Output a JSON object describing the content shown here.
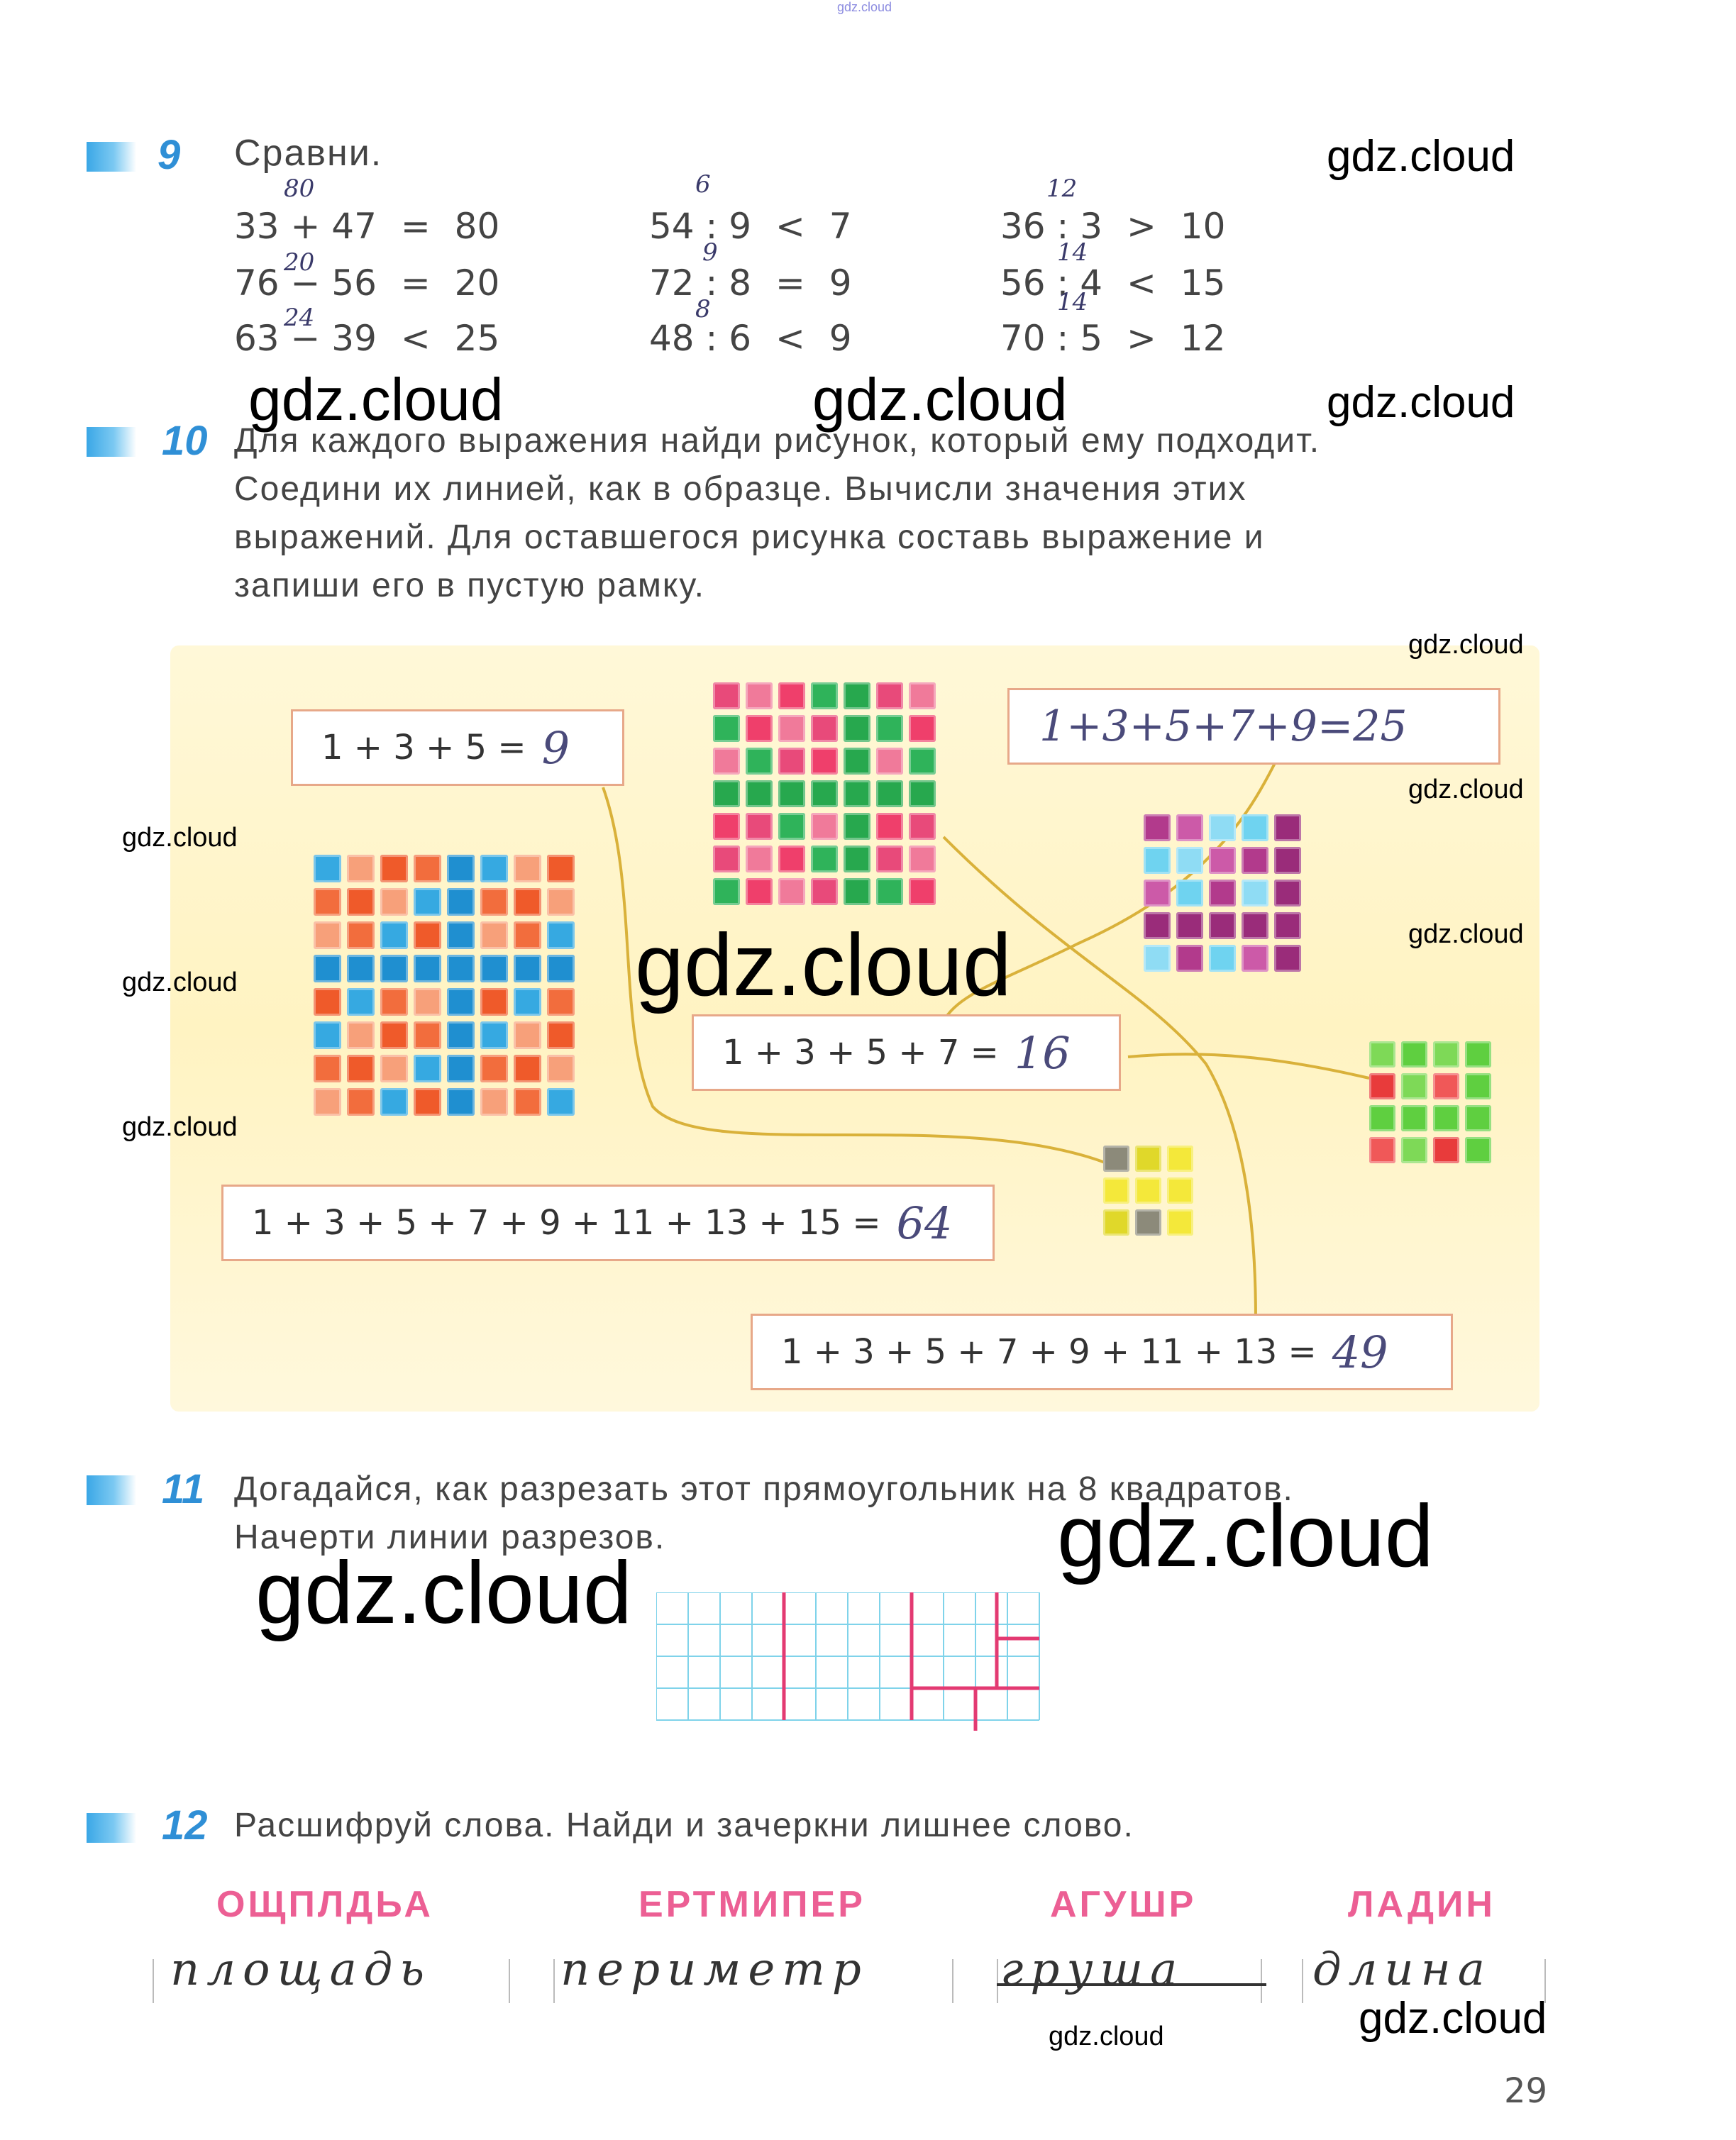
{
  "watermark_top": "gdz.cloud",
  "watermarks": [
    "gdz.cloud"
  ],
  "task9": {
    "number": "9",
    "title": "Сравни.",
    "rows": [
      {
        "expr": "33 + 47",
        "op": "=",
        "rhs": "80",
        "note": "80"
      },
      {
        "expr": "76 − 56",
        "op": "=",
        "rhs": "20",
        "note": "20"
      },
      {
        "expr": "63 − 39",
        "op": "<",
        "rhs": "25",
        "note": "24"
      },
      {
        "expr": "54 : 9",
        "op": "<",
        "rhs": "7",
        "note": "6"
      },
      {
        "expr": "72 : 8",
        "op": "=",
        "rhs": "9",
        "note": "9"
      },
      {
        "expr": "48 : 6",
        "op": "<",
        "rhs": "9",
        "note": "8"
      },
      {
        "expr": "36 : 3",
        "op": ">",
        "rhs": "10",
        "note": "12"
      },
      {
        "expr": "56 : 4",
        "op": "<",
        "rhs": "15",
        "note": "14"
      },
      {
        "expr": "70 : 5",
        "op": ">",
        "rhs": "12",
        "note": "14"
      }
    ]
  },
  "task10": {
    "number": "10",
    "lines": [
      "Для каждого выражения найди рисунок, который ему подходит.",
      "Соедини их линией, как в образце. Вычисли значения этих",
      "выражений. Для оставшегося рисунка составь выражение и",
      "запиши его в пустую рамку."
    ],
    "boxes": [
      {
        "expr": "1 + 3 + 5 =",
        "answer": "9"
      },
      {
        "expr": "",
        "answer": "1+3+5+7+9=25"
      },
      {
        "expr": "1 + 3 + 5 + 7 =",
        "answer": "16"
      },
      {
        "expr": "1 + 3 + 5 + 7 + 9 + 11 + 13 + 15 =",
        "answer": "64"
      },
      {
        "expr": "1 + 3 + 5 + 7 + 9 + 11 + 13 =",
        "answer": "49"
      }
    ]
  },
  "task11": {
    "number": "11",
    "lines": [
      "Догадайся, как разрезать этот прямоугольник на 8 квадратов.",
      "Начерти линии разрезов."
    ]
  },
  "task12": {
    "number": "12",
    "title": "Расшифруй слова. Найди и зачеркни лишнее слово.",
    "words": [
      {
        "scrambled": "ОЩПЛДЬА",
        "answer": "площадь"
      },
      {
        "scrambled": "ЕРТМИПЕР",
        "answer": "периметр"
      },
      {
        "scrambled": "АГУШР",
        "answer": "груша"
      },
      {
        "scrambled": "ЛАДИН",
        "answer": "длина"
      }
    ]
  },
  "page_number": "29",
  "colors": {
    "accent": "#2f8fd6",
    "pink": "#ec5f94",
    "panel": "#fff3c2",
    "box_border": "#e7a889"
  }
}
